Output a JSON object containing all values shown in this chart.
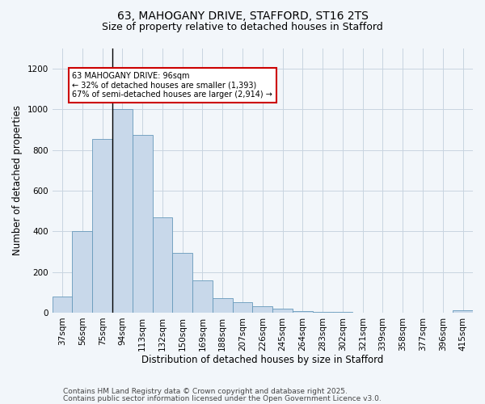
{
  "title1": "63, MAHOGANY DRIVE, STAFFORD, ST16 2TS",
  "title2": "Size of property relative to detached houses in Stafford",
  "xlabel": "Distribution of detached houses by size in Stafford",
  "ylabel": "Number of detached properties",
  "categories": [
    "37sqm",
    "56sqm",
    "75sqm",
    "94sqm",
    "113sqm",
    "132sqm",
    "150sqm",
    "169sqm",
    "188sqm",
    "207sqm",
    "226sqm",
    "245sqm",
    "264sqm",
    "283sqm",
    "302sqm",
    "321sqm",
    "339sqm",
    "358sqm",
    "377sqm",
    "396sqm",
    "415sqm"
  ],
  "values": [
    80,
    400,
    855,
    1000,
    875,
    470,
    295,
    160,
    70,
    50,
    30,
    20,
    8,
    3,
    2,
    1,
    0,
    1,
    1,
    0,
    10
  ],
  "bar_color": "#c8d8ea",
  "bar_edge_color": "#6699bb",
  "marker_label": "63 MAHOGANY DRIVE: 96sqm",
  "annotation_line1": "← 32% of detached houses are smaller (1,393)",
  "annotation_line2": "67% of semi-detached houses are larger (2,914) →",
  "annotation_box_facecolor": "#ffffff",
  "annotation_box_edgecolor": "#cc0000",
  "ylim": [
    0,
    1300
  ],
  "yticks": [
    0,
    200,
    400,
    600,
    800,
    1000,
    1200
  ],
  "footnote1": "Contains HM Land Registry data © Crown copyright and database right 2025.",
  "footnote2": "Contains public sector information licensed under the Open Government Licence v3.0.",
  "bg_color": "#f2f6fa",
  "plot_bg_color": "#f2f6fa",
  "grid_color": "#c8d4e0",
  "title_fontsize": 10,
  "subtitle_fontsize": 9,
  "axis_label_fontsize": 8.5,
  "tick_fontsize": 7.5,
  "annotation_fontsize": 7,
  "footnote_fontsize": 6.5,
  "marker_line_index": 2.5
}
